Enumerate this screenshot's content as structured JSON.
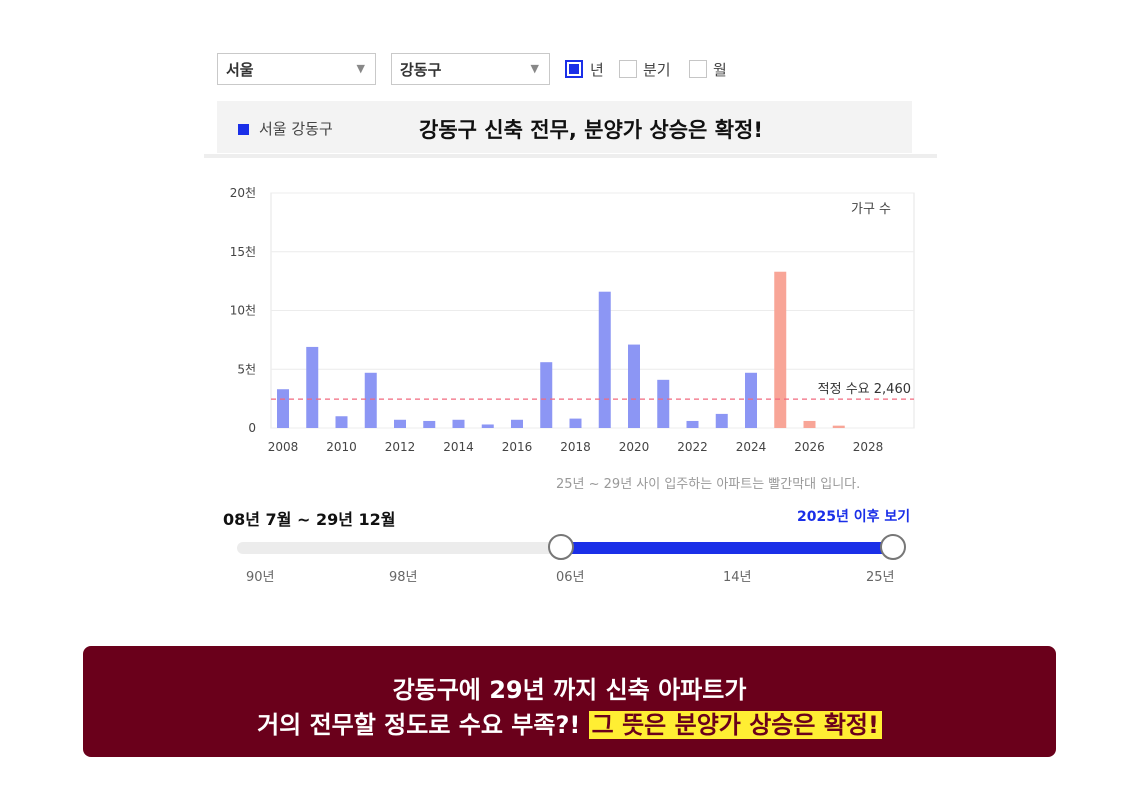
{
  "filters": {
    "city": "서울",
    "district": "강동구",
    "periods": [
      {
        "label": "년",
        "checked": true
      },
      {
        "label": "분기",
        "checked": false
      },
      {
        "label": "월",
        "checked": false
      }
    ]
  },
  "header": {
    "region_label": "서울 강동구",
    "headline": "강동구 신축 전무, 분양가 상승은 확정!"
  },
  "chart_data": {
    "type": "bar",
    "y_unit_label": "가구 수",
    "ylim": [
      0,
      20000
    ],
    "y_ticks": [
      {
        "value": 0,
        "label": "0"
      },
      {
        "value": 5000,
        "label": "5천"
      },
      {
        "value": 10000,
        "label": "10천"
      },
      {
        "value": 15000,
        "label": "15천"
      },
      {
        "value": 20000,
        "label": "20천"
      }
    ],
    "x_tick_labels": [
      "2008",
      "2010",
      "2012",
      "2014",
      "2016",
      "2018",
      "2020",
      "2022",
      "2024",
      "2026",
      "2028"
    ],
    "x": [
      2008,
      2009,
      2010,
      2011,
      2012,
      2013,
      2014,
      2015,
      2016,
      2017,
      2018,
      2019,
      2020,
      2021,
      2022,
      2023,
      2024,
      2025,
      2026,
      2027,
      2028
    ],
    "values": [
      3300,
      6900,
      1000,
      4700,
      700,
      600,
      700,
      300,
      700,
      5600,
      800,
      11600,
      7100,
      4100,
      600,
      1200,
      4700,
      13300,
      600,
      200,
      0
    ],
    "future_from": 2025,
    "colors": {
      "past": "#8c96f4",
      "future": "#f8a597"
    },
    "reference": {
      "value": 2460,
      "label": "적정 수요 2,460",
      "color": "#f2697e"
    },
    "note": "25년 ~ 29년 사이 입주하는 아파트는 빨간막대 입니다.",
    "grid": true
  },
  "range": {
    "title": "08년 7월 ~ 29년 12월",
    "link": "2025년 이후 보기",
    "ticks": [
      "90년",
      "98년",
      "06년",
      "14년",
      "25년"
    ]
  },
  "banner": {
    "line1": "강동구에 29년 까지 신축 아파트가",
    "line2_plain": "거의 전무할 정도로 수요 부족?!",
    "line2_highlight": "그 뜻은 분양가 상승은 확정!"
  }
}
